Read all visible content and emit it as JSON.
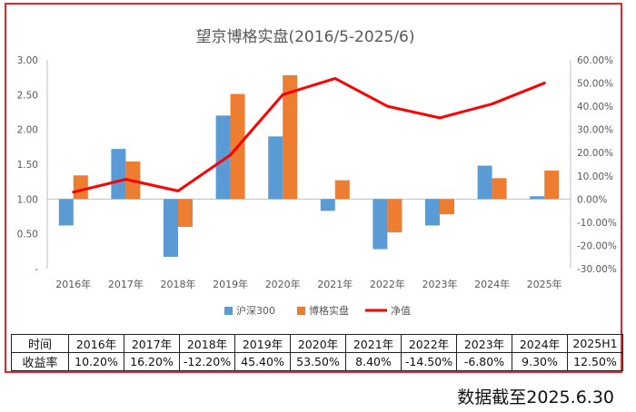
{
  "chart_data": {
    "type": "bar+line",
    "title": "望京博格实盘(2016/5-2025/6)",
    "categories": [
      "2016年",
      "2017年",
      "2018年",
      "2019年",
      "2020年",
      "2021年",
      "2022年",
      "2023年",
      "2024年",
      "2025年"
    ],
    "y_left": {
      "ticks": [
        "3.00",
        "2.50",
        "2.00",
        "1.50",
        "1.00",
        "0.50",
        "-"
      ],
      "range": [
        0,
        3
      ],
      "baseline": 1.0
    },
    "y_right": {
      "ticks": [
        "60.00%",
        "50.00%",
        "40.00%",
        "30.00%",
        "20.00%",
        "10.00%",
        "0.00%",
        "-10.00%",
        "-20.00%",
        "-30.00%"
      ],
      "range": [
        -0.3,
        0.6
      ]
    },
    "series": [
      {
        "name": "沪深300",
        "type": "bar",
        "axis": "left",
        "color": "#5b9bd5",
        "values": [
          0.62,
          1.72,
          0.17,
          2.2,
          1.9,
          0.83,
          0.28,
          0.62,
          1.48,
          1.04
        ]
      },
      {
        "name": "博格实盘",
        "type": "bar",
        "axis": "left",
        "color": "#ed7d31",
        "values": [
          1.34,
          1.54,
          0.6,
          2.51,
          2.78,
          1.27,
          0.52,
          0.78,
          1.3,
          1.41
        ]
      },
      {
        "name": "净值",
        "type": "line",
        "axis": "right",
        "color": "#ff0000",
        "values": [
          0.03,
          0.085,
          0.035,
          0.19,
          0.45,
          0.52,
          0.4,
          0.35,
          0.41,
          0.5
        ]
      }
    ],
    "grid": false,
    "legend_position": "bottom"
  },
  "table": {
    "row_labels": [
      "时间",
      "收益率"
    ],
    "years": [
      "2016年",
      "2017年",
      "2018年",
      "2019年",
      "2020年",
      "2021年",
      "2022年",
      "2023年",
      "2024年",
      "2025H1"
    ],
    "returns": [
      "10.20%",
      "16.20%",
      "-12.20%",
      "45.40%",
      "53.50%",
      "8.40%",
      "-14.50%",
      "-6.80%",
      "9.30%",
      "12.50%"
    ]
  },
  "footnote": "数据截至2025.6.30",
  "colors": {
    "frame": "#e8262a",
    "axis": "#bfbfbf",
    "text": "#595959"
  }
}
